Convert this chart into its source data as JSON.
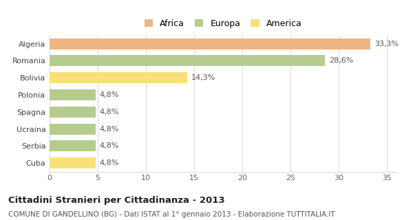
{
  "categories": [
    "Algeria",
    "Romania",
    "Bolivia",
    "Polonia",
    "Spagna",
    "Ucraina",
    "Serbia",
    "Cuba"
  ],
  "values": [
    33.3,
    28.6,
    14.3,
    4.8,
    4.8,
    4.8,
    4.8,
    4.8
  ],
  "labels": [
    "33,3%",
    "28,6%",
    "14,3%",
    "4,8%",
    "4,8%",
    "4,8%",
    "4,8%",
    "4,8%"
  ],
  "colors": [
    "#f0b482",
    "#b5cc8e",
    "#f9e07a",
    "#b5cc8e",
    "#b5cc8e",
    "#b5cc8e",
    "#b5cc8e",
    "#f9e07a"
  ],
  "legend_labels": [
    "Africa",
    "Europa",
    "America"
  ],
  "legend_colors": [
    "#f0b482",
    "#b5cc8e",
    "#f9e07a"
  ],
  "xlim": [
    0,
    36
  ],
  "xticks": [
    0,
    5,
    10,
    15,
    20,
    25,
    30,
    35
  ],
  "title": "Cittadini Stranieri per Cittadinanza - 2013",
  "subtitle": "COMUNE DI GANDELLINO (BG) - Dati ISTAT al 1° gennaio 2013 - Elaborazione TUTTITALIA.IT",
  "title_fontsize": 9.5,
  "subtitle_fontsize": 7.5,
  "bar_height": 0.65,
  "bg_color": "#ffffff",
  "grid_color": "#dddddd",
  "label_fontsize": 8,
  "ytick_fontsize": 8,
  "xtick_fontsize": 8
}
